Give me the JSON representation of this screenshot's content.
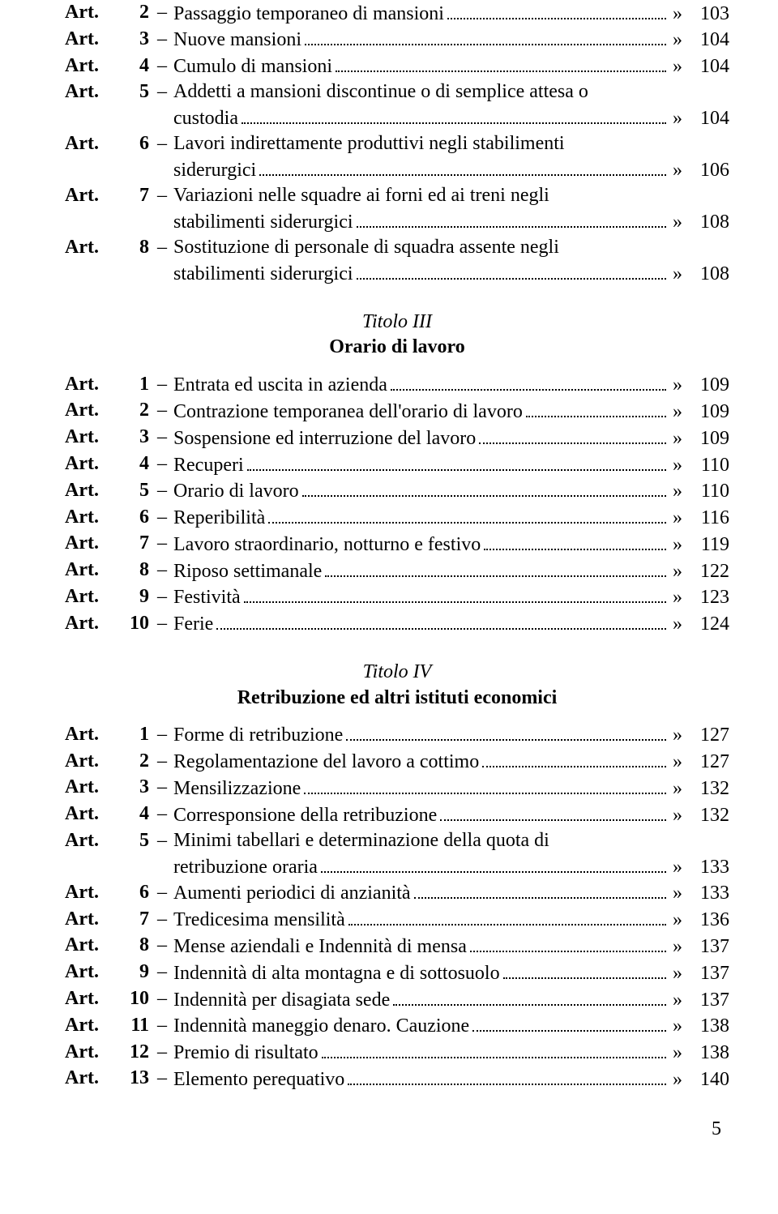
{
  "labels": {
    "art": "Art.",
    "dash": "–",
    "raquo": "»"
  },
  "groups": [
    {
      "header": null,
      "entries": [
        {
          "num": "2",
          "lines": [
            "Passaggio temporaneo di mansioni"
          ],
          "page": "103"
        },
        {
          "num": "3",
          "lines": [
            "Nuove mansioni"
          ],
          "page": "104"
        },
        {
          "num": "4",
          "lines": [
            "Cumulo di mansioni"
          ],
          "page": "104"
        },
        {
          "num": "5",
          "lines": [
            "Addetti a mansioni discontinue o di semplice attesa o",
            "custodia"
          ],
          "page": "104"
        },
        {
          "num": "6",
          "lines": [
            "Lavori indirettamente produttivi negli stabilimenti",
            "siderurgici"
          ],
          "page": "106"
        },
        {
          "num": "7",
          "lines": [
            "Variazioni nelle squadre ai forni ed ai treni negli",
            "stabilimenti siderurgici"
          ],
          "page": "108"
        },
        {
          "num": "8",
          "lines": [
            "Sostituzione di personale di squadra assente negli",
            "stabilimenti siderurgici"
          ],
          "page": "108"
        }
      ]
    },
    {
      "header": {
        "italic": "Titolo III",
        "bold": "Orario di lavoro"
      },
      "entries": [
        {
          "num": "1",
          "lines": [
            "Entrata ed uscita in azienda"
          ],
          "page": "109"
        },
        {
          "num": "2",
          "lines": [
            "Contrazione temporanea dell'orario di lavoro"
          ],
          "page": "109"
        },
        {
          "num": "3",
          "lines": [
            "Sospensione ed interruzione del lavoro"
          ],
          "page": "109"
        },
        {
          "num": "4",
          "lines": [
            "Recuperi"
          ],
          "page": "110"
        },
        {
          "num": "5",
          "lines": [
            "Orario di lavoro"
          ],
          "page": "110"
        },
        {
          "num": "6",
          "lines": [
            "Reperibilità"
          ],
          "page": "116"
        },
        {
          "num": "7",
          "lines": [
            "Lavoro straordinario, notturno e festivo"
          ],
          "page": "119"
        },
        {
          "num": "8",
          "lines": [
            "Riposo settimanale"
          ],
          "page": "122"
        },
        {
          "num": "9",
          "lines": [
            "Festività"
          ],
          "page": "123"
        },
        {
          "num": "10",
          "lines": [
            "Ferie"
          ],
          "page": "124"
        }
      ]
    },
    {
      "header": {
        "italic": "Titolo IV",
        "bold": "Retribuzione ed altri istituti economici"
      },
      "entries": [
        {
          "num": "1",
          "lines": [
            "Forme di retribuzione"
          ],
          "page": "127"
        },
        {
          "num": "2",
          "lines": [
            "Regolamentazione del lavoro a cottimo"
          ],
          "page": "127"
        },
        {
          "num": "3",
          "lines": [
            "Mensilizzazione"
          ],
          "page": "132"
        },
        {
          "num": "4",
          "lines": [
            "Corresponsione della retribuzione"
          ],
          "page": "132"
        },
        {
          "num": "5",
          "lines": [
            "Minimi tabellari e determinazione della quota di",
            "retribuzione oraria"
          ],
          "page": "133"
        },
        {
          "num": "6",
          "lines": [
            "Aumenti periodici di anzianità"
          ],
          "page": "133"
        },
        {
          "num": "7",
          "lines": [
            "Tredicesima mensilità"
          ],
          "page": "136"
        },
        {
          "num": "8",
          "lines": [
            "Mense aziendali e Indennità di mensa"
          ],
          "page": "137"
        },
        {
          "num": "9",
          "lines": [
            "Indennità di alta montagna e di sottosuolo"
          ],
          "page": "137"
        },
        {
          "num": "10",
          "lines": [
            "Indennità per disagiata sede"
          ],
          "page": "137"
        },
        {
          "num": "11",
          "lines": [
            "Indennità maneggio denaro. Cauzione"
          ],
          "page": "138"
        },
        {
          "num": "12",
          "lines": [
            "Premio di risultato"
          ],
          "page": "138"
        },
        {
          "num": "13",
          "lines": [
            "Elemento perequativo"
          ],
          "page": "140"
        }
      ]
    }
  ],
  "footerPage": "5"
}
